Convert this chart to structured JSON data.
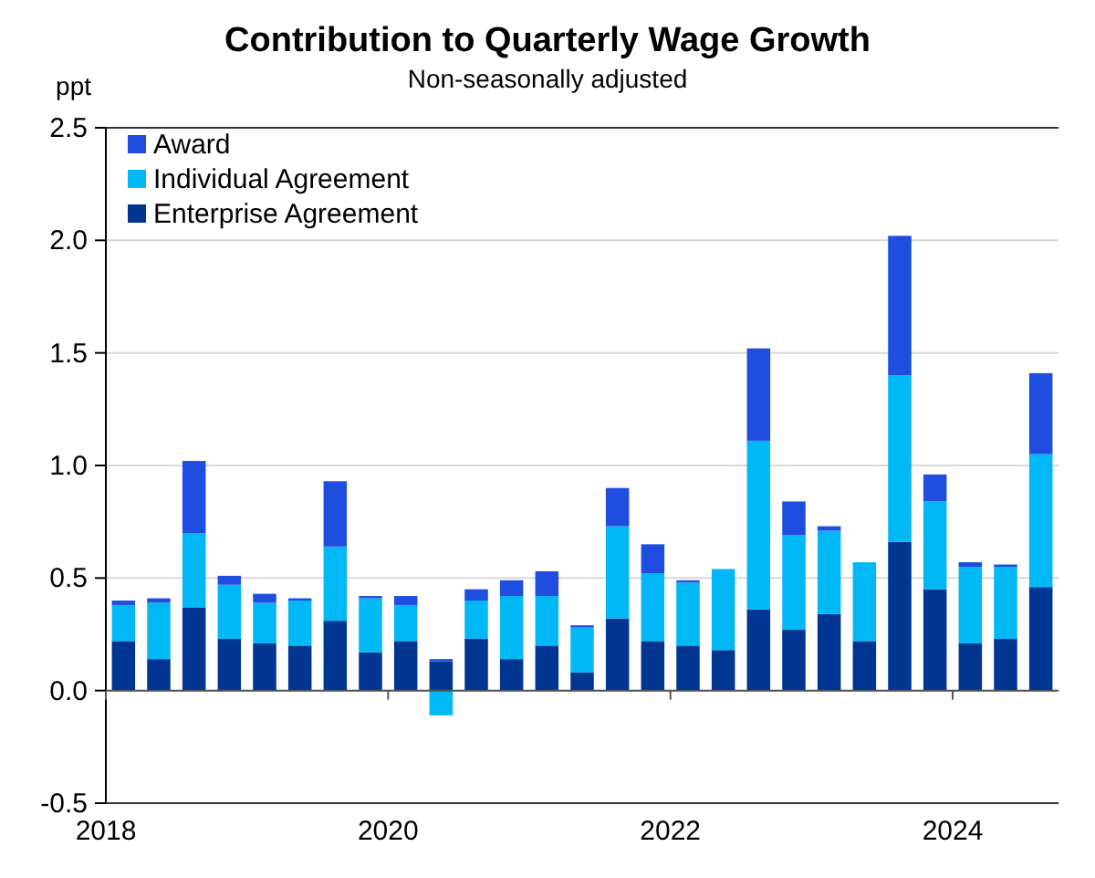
{
  "chart_data": {
    "type": "bar",
    "stacked": true,
    "title": "Contribution to Quarterly Wage Growth",
    "subtitle": "Non-seasonally adjusted",
    "ylabel": "ppt",
    "x": [
      2018.125,
      2018.375,
      2018.625,
      2018.875,
      2019.125,
      2019.375,
      2019.625,
      2019.875,
      2020.125,
      2020.375,
      2020.625,
      2020.875,
      2021.125,
      2021.375,
      2021.625,
      2021.875,
      2022.125,
      2022.375,
      2022.625,
      2022.875,
      2023.125,
      2023.375,
      2023.625,
      2023.875,
      2024.125,
      2024.375,
      2024.625
    ],
    "xlim": [
      2018,
      2024.75
    ],
    "xticks": [
      2018,
      2020,
      2022,
      2024
    ],
    "ylim": [
      -0.5,
      2.5
    ],
    "yticks": [
      {
        "value": -0.5,
        "label": "-0.5"
      },
      {
        "value": 0,
        "label": "0.0"
      },
      {
        "value": 0.5,
        "label": "0.5"
      },
      {
        "value": 1,
        "label": "1.0"
      },
      {
        "value": 1.5,
        "label": "1.5"
      },
      {
        "value": 2,
        "label": "2.0"
      },
      {
        "value": 2.5,
        "label": "2.5"
      }
    ],
    "grid": "y",
    "legend": "top left",
    "series": [
      {
        "name": "Enterprise Agreement",
        "color": "#003591",
        "values": [
          0.22,
          0.14,
          0.37,
          0.23,
          0.21,
          0.2,
          0.31,
          0.17,
          0.22,
          0.13,
          0.23,
          0.14,
          0.2,
          0.08,
          0.32,
          0.22,
          0.2,
          0.18,
          0.36,
          0.27,
          0.34,
          0.22,
          0.66,
          0.45,
          0.21,
          0.23,
          0.46
        ]
      },
      {
        "name": "Individual Agreement",
        "color": "#00b8f5",
        "values": [
          0.16,
          0.25,
          0.33,
          0.24,
          0.18,
          0.2,
          0.33,
          0.24,
          0.16,
          -0.11,
          0.17,
          0.28,
          0.22,
          0.2,
          0.41,
          0.3,
          0.28,
          0.36,
          0.75,
          0.42,
          0.37,
          0.35,
          0.74,
          0.39,
          0.34,
          0.32,
          0.59
        ]
      },
      {
        "name": "Award",
        "color": "#1f4de0",
        "values": [
          0.02,
          0.02,
          0.32,
          0.04,
          0.04,
          0.01,
          0.29,
          0.01,
          0.04,
          0.01,
          0.05,
          0.07,
          0.11,
          0.01,
          0.17,
          0.13,
          0.01,
          0,
          0.41,
          0.15,
          0.02,
          0,
          0.62,
          0.12,
          0.02,
          0.01,
          0.36
        ]
      }
    ]
  }
}
